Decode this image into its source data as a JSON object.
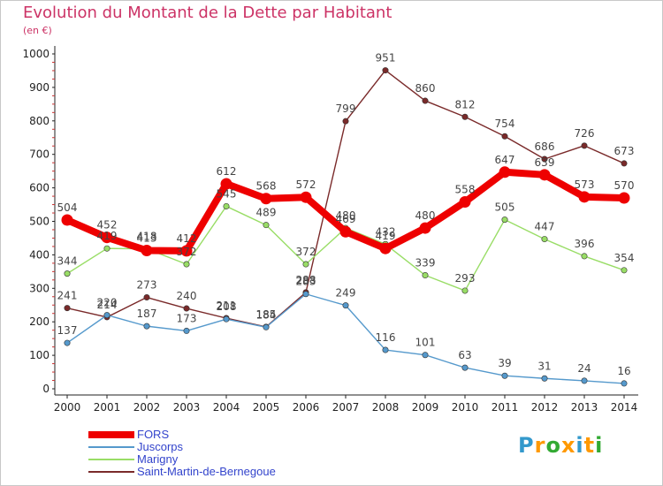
{
  "header": {
    "title": "Evolution du Montant de la Dette par Habitant",
    "unit": "(en €)"
  },
  "logo": {
    "text": "Proxiti",
    "colors": [
      "#3399cc",
      "#ff9900",
      "#33aa33",
      "#ff9900",
      "#3399cc",
      "#ff9900",
      "#33aa33"
    ]
  },
  "chart_data": {
    "type": "line",
    "title": "Evolution du Montant de la Dette par Habitant",
    "subtitle": "(en €)",
    "x": [
      "2000",
      "2001",
      "2002",
      "2003",
      "2004",
      "2005",
      "2006",
      "2007",
      "2008",
      "2009",
      "2010",
      "2011",
      "2012",
      "2013",
      "2014"
    ],
    "yticks": [
      0,
      100,
      200,
      300,
      400,
      500,
      600,
      700,
      800,
      900,
      1000
    ],
    "ylim": [
      0,
      1000
    ],
    "grid": false,
    "legend_position": "bottom-left",
    "series": [
      {
        "name": "Saint-Martin-de-Bernegoue",
        "color": "#7a2a2a",
        "values": [
          241,
          214,
          273,
          240,
          211,
          185,
          288,
          799,
          951,
          860,
          812,
          754,
          686,
          726,
          673
        ]
      },
      {
        "name": "Marigny",
        "color": "#99dd66",
        "values": [
          344,
          419,
          418,
          372,
          545,
          489,
          372,
          480,
          432,
          339,
          293,
          505,
          447,
          396,
          354
        ]
      },
      {
        "name": "Juscorps",
        "color": "#5599cc",
        "values": [
          137,
          220,
          187,
          173,
          208,
          184,
          283,
          249,
          116,
          101,
          63,
          39,
          31,
          24,
          16
        ]
      },
      {
        "name": "FORS",
        "color": "#ee0000",
        "values": [
          504,
          452,
          413,
          412,
          612,
          568,
          572,
          469,
          419,
          480,
          558,
          647,
          639,
          573,
          570
        ]
      }
    ],
    "legend": [
      "FORS",
      "Juscorps",
      "Marigny",
      "Saint-Martin-de-Bernegoue"
    ]
  }
}
